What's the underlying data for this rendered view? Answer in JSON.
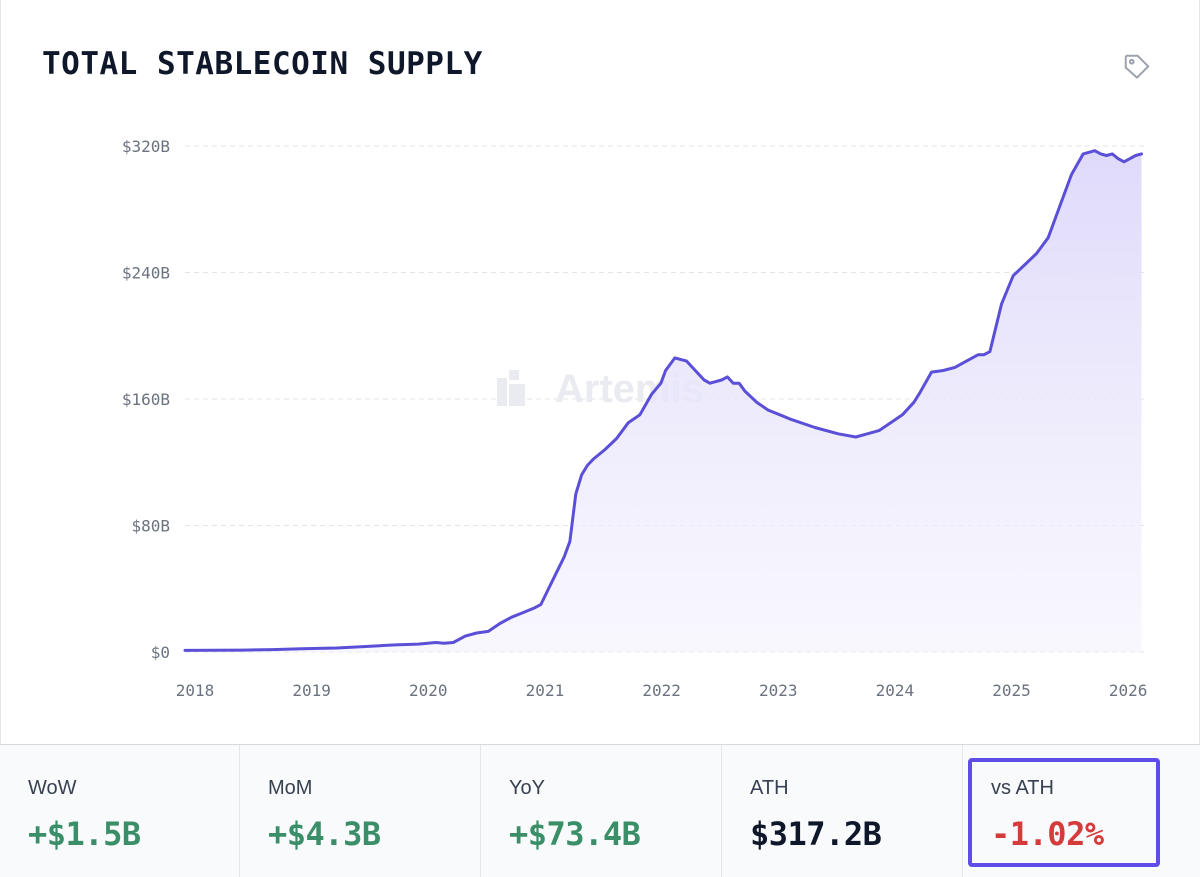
{
  "header": {
    "title": "TOTAL STABLECOIN SUPPLY",
    "tag_icon": "tag-icon"
  },
  "watermark": "Artemis",
  "chart_data": {
    "type": "area",
    "title": "TOTAL STABLECOIN SUPPLY",
    "ylim": [
      0,
      320
    ],
    "yticks": [
      0,
      80,
      160,
      240,
      320
    ],
    "ytick_labels": [
      "$0",
      "$80B",
      "$160B",
      "$240B",
      "$320B"
    ],
    "xlim": [
      2018,
      2026.23
    ],
    "xticks": [
      2018,
      2019,
      2020,
      2021,
      2022,
      2023,
      2024,
      2025,
      2026
    ],
    "xtick_labels": [
      "2018",
      "2019",
      "2020",
      "2021",
      "2022",
      "2023",
      "2024",
      "2025",
      "2026"
    ],
    "grid": true,
    "line_color": "#5b4fd8",
    "fill_color": "#e4e0fa",
    "series": [
      {
        "x": [
          2018.0,
          2018.5,
          2018.75,
          2019.0,
          2019.3,
          2019.55,
          2019.8,
          2020.0,
          2020.15,
          2020.22,
          2020.3,
          2020.4,
          2020.5,
          2020.6,
          2020.7,
          2020.8,
          2020.9,
          2021.0,
          2021.05,
          2021.15,
          2021.25,
          2021.3,
          2021.35,
          2021.4,
          2021.45,
          2021.5,
          2021.6,
          2021.7,
          2021.8,
          2021.9,
          2022.0,
          2022.08,
          2022.12,
          2022.2,
          2022.3,
          2022.35,
          2022.45,
          2022.5,
          2022.6,
          2022.65,
          2022.7,
          2022.75,
          2022.8,
          2022.9,
          2023.0,
          2023.1,
          2023.2,
          2023.4,
          2023.6,
          2023.75,
          2023.85,
          2023.95,
          2024.05,
          2024.15,
          2024.25,
          2024.3,
          2024.4,
          2024.5,
          2024.6,
          2024.7,
          2024.8,
          2024.85,
          2024.9,
          2025.0,
          2025.1,
          2025.2,
          2025.3,
          2025.4,
          2025.5,
          2025.6,
          2025.7,
          2025.8,
          2025.85,
          2025.9,
          2025.95,
          2026.0,
          2026.05,
          2026.1,
          2026.15,
          2026.2
        ],
        "y": [
          1,
          1.2,
          1.5,
          2,
          2.5,
          3.5,
          4.5,
          5,
          6,
          5.5,
          6,
          10,
          12,
          13,
          18,
          22,
          25,
          28,
          30,
          45,
          60,
          70,
          100,
          112,
          118,
          122,
          128,
          135,
          145,
          150,
          163,
          170,
          178,
          186,
          184,
          180,
          172,
          170,
          172,
          174,
          170,
          170,
          165,
          158,
          153,
          150,
          147,
          142,
          138,
          136,
          138,
          140,
          145,
          150,
          158,
          164,
          177,
          178,
          180,
          184,
          188,
          188,
          190,
          220,
          238,
          245,
          252,
          262,
          282,
          302,
          315,
          317,
          315,
          314,
          315,
          312,
          310,
          312,
          314,
          315
        ]
      }
    ]
  },
  "stats": [
    {
      "label": "WoW",
      "value": "+$1.5B",
      "tone": "pos"
    },
    {
      "label": "MoM",
      "value": "+$4.3B",
      "tone": "pos"
    },
    {
      "label": "YoY",
      "value": "+$73.4B",
      "tone": "pos"
    },
    {
      "label": "ATH",
      "value": "$317.2B",
      "tone": "neutral"
    },
    {
      "label": "vs ATH",
      "value": "-1.02%",
      "tone": "neg"
    }
  ],
  "colors": {
    "positive": "#3a8f68",
    "negative": "#d63b3b",
    "highlight_border": "#5f4dea"
  }
}
